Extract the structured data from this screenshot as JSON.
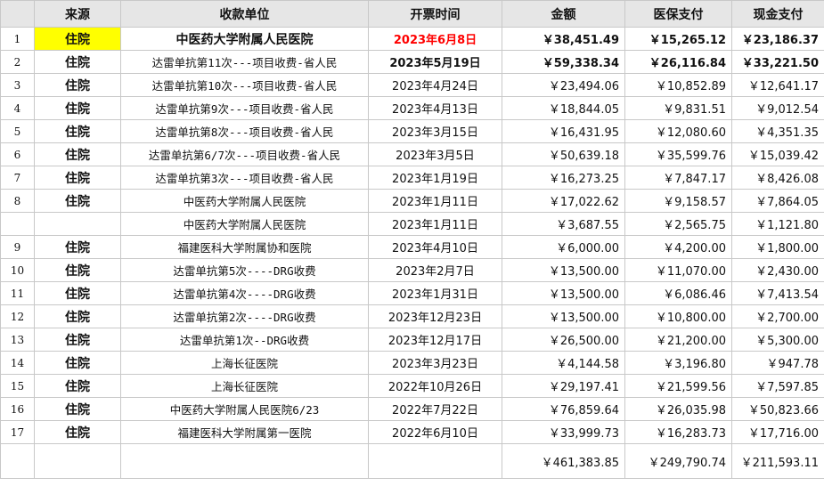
{
  "headers": [
    "来源",
    "收款单位",
    "开票时间",
    "金额",
    "医保支付",
    "现金支付"
  ],
  "rows": [
    {
      "no": "1",
      "src": "住院",
      "payee": "中医药大学附属人民医院",
      "date": "2023年6月8日",
      "amount": "￥38,451.49",
      "insurance": "￥15,265.12",
      "cash": "￥23,186.37"
    },
    {
      "no": "2",
      "src": "住院",
      "payee": "达雷单抗第11次---项目收费-省人民",
      "date": "2023年5月19日",
      "amount": "￥59,338.34",
      "insurance": "￥26,116.84",
      "cash": "￥33,221.50"
    },
    {
      "no": "3",
      "src": "住院",
      "payee": "达雷单抗第10次---项目收费-省人民",
      "date": "2023年4月24日",
      "amount": "￥23,494.06",
      "insurance": "￥10,852.89",
      "cash": "￥12,641.17"
    },
    {
      "no": "4",
      "src": "住院",
      "payee": "达雷单抗第9次---项目收费-省人民",
      "date": "2023年4月13日",
      "amount": "￥18,844.05",
      "insurance": "￥9,831.51",
      "cash": "￥9,012.54"
    },
    {
      "no": "5",
      "src": "住院",
      "payee": "达雷单抗第8次---项目收费-省人民",
      "date": "2023年3月15日",
      "amount": "￥16,431.95",
      "insurance": "￥12,080.60",
      "cash": "￥4,351.35"
    },
    {
      "no": "6",
      "src": "住院",
      "payee": "达雷单抗第6/7次---项目收费-省人民",
      "date": "2023年3月5日",
      "amount": "￥50,639.18",
      "insurance": "￥35,599.76",
      "cash": "￥15,039.42"
    },
    {
      "no": "7",
      "src": "住院",
      "payee": "达雷单抗第3次---项目收费-省人民",
      "date": "2023年1月19日",
      "amount": "￥16,273.25",
      "insurance": "￥7,847.17",
      "cash": "￥8,426.08"
    },
    {
      "no": "8",
      "src": "住院",
      "payee": "中医药大学附属人民医院",
      "date": "2023年1月11日",
      "amount": "￥17,022.62",
      "insurance": "￥9,158.57",
      "cash": "￥7,864.05"
    },
    {
      "no": "",
      "src": "",
      "payee": "中医药大学附属人民医院",
      "date": "2023年1月11日",
      "amount": "￥3,687.55",
      "insurance": "￥2,565.75",
      "cash": "￥1,121.80"
    },
    {
      "no": "9",
      "src": "住院",
      "payee": "福建医科大学附属协和医院",
      "date": "2023年4月10日",
      "amount": "￥6,000.00",
      "insurance": "￥4,200.00",
      "cash": "￥1,800.00"
    },
    {
      "no": "10",
      "src": "住院",
      "payee": "达雷单抗第5次----DRG收费",
      "date": "2023年2月7日",
      "amount": "￥13,500.00",
      "insurance": "￥11,070.00",
      "cash": "￥2,430.00"
    },
    {
      "no": "11",
      "src": "住院",
      "payee": "达雷单抗第4次----DRG收费",
      "date": "2023年1月31日",
      "amount": "￥13,500.00",
      "insurance": "￥6,086.46",
      "cash": "￥7,413.54"
    },
    {
      "no": "12",
      "src": "住院",
      "payee": "达雷单抗第2次----DRG收费",
      "date": "2023年12月23日",
      "amount": "￥13,500.00",
      "insurance": "￥10,800.00",
      "cash": "￥2,700.00"
    },
    {
      "no": "13",
      "src": "住院",
      "payee": "达雷单抗第1次--DRG收费",
      "date": "2023年12月17日",
      "amount": "￥26,500.00",
      "insurance": "￥21,200.00",
      "cash": "￥5,300.00"
    },
    {
      "no": "14",
      "src": "住院",
      "payee": "上海长征医院",
      "date": "2023年3月23日",
      "amount": "￥4,144.58",
      "insurance": "￥3,196.80",
      "cash": "￥947.78"
    },
    {
      "no": "15",
      "src": "住院",
      "payee": "上海长征医院",
      "date": "2022年10月26日",
      "amount": "￥29,197.41",
      "insurance": "￥21,599.56",
      "cash": "￥7,597.85"
    },
    {
      "no": "16",
      "src": "住院",
      "payee": "中医药大学附属人民医院6/23",
      "date": "2022年7月22日",
      "amount": "￥76,859.64",
      "insurance": "￥26,035.98",
      "cash": "￥50,823.66"
    },
    {
      "no": "17",
      "src": "住院",
      "payee": "福建医科大学附属第一医院",
      "date": "2022年6月10日",
      "amount": "￥33,999.73",
      "insurance": "￥16,283.73",
      "cash": "￥17,716.00"
    }
  ],
  "totals": {
    "amount": "￥461,383.85",
    "insurance": "￥249,790.74",
    "cash": "￥211,593.11"
  },
  "colors": {
    "highlight": "#ffff00",
    "red_text": "#ff0000",
    "header_bg": "#e6e6e6",
    "grid": "#c8c8c8"
  }
}
